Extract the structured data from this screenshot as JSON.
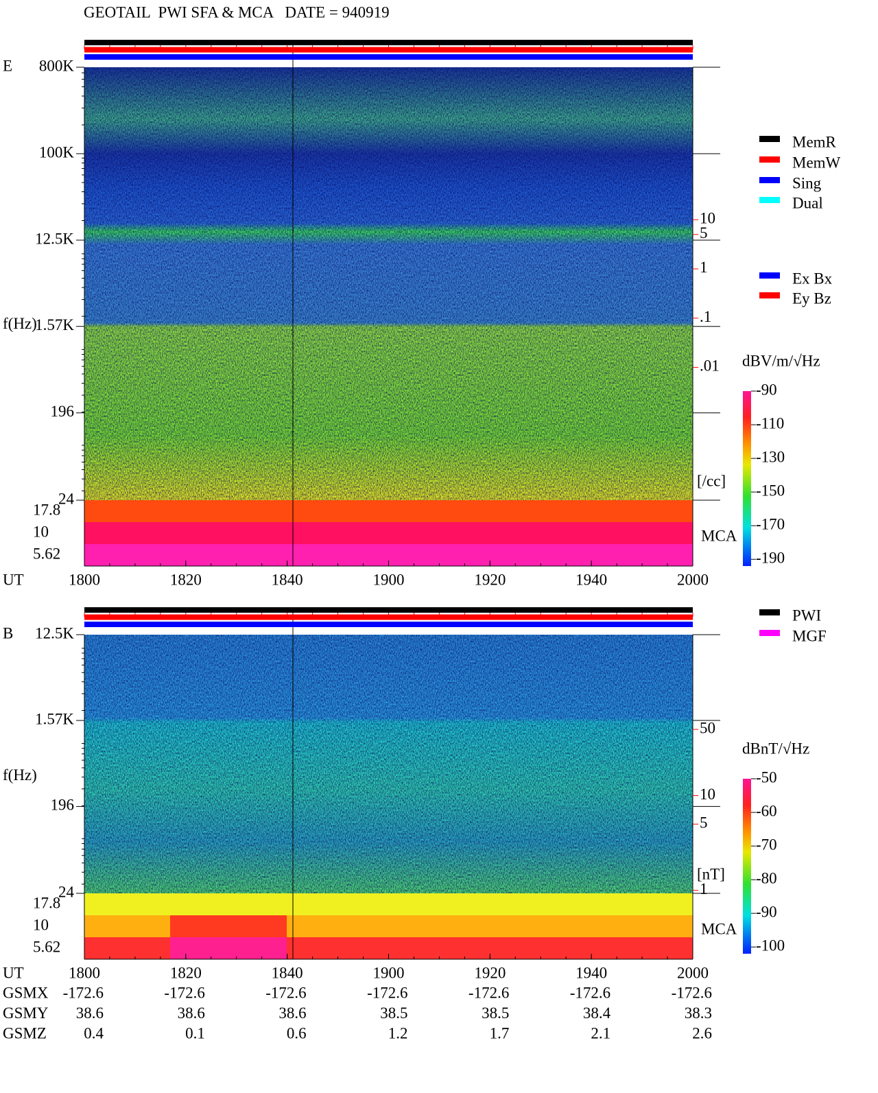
{
  "title": "GEOTAIL  PWI SFA & MCA   DATE = 940919",
  "chart_data": [
    {
      "type": "spectrogram",
      "panel_label": "E",
      "ylabel": "f(Hz)",
      "xlabel": "UT",
      "log_y": true,
      "ylim": [
        24,
        800000
      ],
      "yticks": [
        {
          "value": 800000,
          "label": "800K"
        },
        {
          "value": 100000,
          "label": "100K"
        },
        {
          "value": 12500,
          "label": "12.5K"
        },
        {
          "value": 1570,
          "label": "1.57K"
        },
        196,
        24
      ],
      "mca_channels": [
        17.8,
        10,
        5.62
      ],
      "mca_label": "MCA",
      "xlim": [
        0,
        120
      ],
      "xticks": [
        {
          "value": 0,
          "label": "1800"
        },
        {
          "value": 20,
          "label": "1820"
        },
        {
          "value": 40,
          "label": "1840"
        },
        {
          "value": 60,
          "label": "1900"
        },
        {
          "value": 80,
          "label": "1920"
        },
        {
          "value": 100,
          "label": "1940"
        },
        {
          "value": 120,
          "label": "2000"
        }
      ],
      "log_y2": true,
      "y2lim": [
        2e-05,
        12500
      ],
      "y2ticks": [
        10,
        5,
        1,
        {
          "value": 0.1,
          "label": ".1"
        },
        {
          "value": 0.01,
          "label": ".01"
        }
      ],
      "y2label": "[/cc]",
      "y2color": "#ff0000",
      "colorbar": {
        "label": "dBV/m/√Hz",
        "clim": [
          -90,
          -194
        ],
        "ticks": [
          -90,
          -110,
          -130,
          -150,
          -170,
          -190
        ]
      },
      "mode_bars": [
        {
          "color": "#000000"
        },
        {
          "color": "#ff0000"
        },
        {
          "color": "#0000ff"
        }
      ],
      "legend_groups": [
        [
          {
            "name": "MemR",
            "color": "#000000"
          },
          {
            "name": "MemW",
            "color": "#ff0000"
          },
          {
            "name": "Sing",
            "color": "#0000ff"
          },
          {
            "name": "Dual",
            "color": "#00ffff"
          }
        ],
        [
          {
            "name": "Ex Bx",
            "color": "#0000ff"
          },
          {
            "name": "Ey Bz",
            "color": "#ff0000"
          }
        ]
      ]
    },
    {
      "type": "spectrogram",
      "panel_label": "B",
      "ylabel": "f(Hz)",
      "xlabel": "UT",
      "log_y": true,
      "ylim": [
        24,
        12500
      ],
      "yticks": [
        {
          "value": 12500,
          "label": "12.5K"
        },
        {
          "value": 1570,
          "label": "1.57K"
        },
        196,
        24
      ],
      "mca_channels": [
        17.8,
        10,
        5.62
      ],
      "mca_label": "MCA",
      "xlim": [
        0,
        120
      ],
      "xticks": [
        {
          "value": 0,
          "label": "1800"
        },
        {
          "value": 20,
          "label": "1820"
        },
        {
          "value": 40,
          "label": "1840"
        },
        {
          "value": 60,
          "label": "1900"
        },
        {
          "value": 80,
          "label": "1920"
        },
        {
          "value": 100,
          "label": "1940"
        },
        {
          "value": 120,
          "label": "2000"
        }
      ],
      "log_y2": true,
      "y2lim": [
        0.93,
        500
      ],
      "y2ticks": [
        50,
        10,
        5,
        1
      ],
      "y2label": "[nT]",
      "y2color": "#ff0000",
      "colorbar": {
        "label": "dBnT/√Hz",
        "clim": [
          -50,
          -102
        ],
        "ticks": [
          -50,
          -60,
          -70,
          -80,
          -90,
          -100
        ]
      },
      "mode_bars": [
        {
          "color": "#000000"
        },
        {
          "color": "#ff0000"
        },
        {
          "color": "#0000ff"
        }
      ],
      "legend_groups": [
        [
          {
            "name": "PWI",
            "color": "#000000"
          },
          {
            "name": "MGF",
            "color": "#ff00ff"
          }
        ]
      ]
    }
  ],
  "ephemeris": {
    "rows": [
      {
        "name": "GSMX",
        "values": [
          -172.6,
          -172.6,
          -172.6,
          -172.6,
          -172.6,
          -172.6,
          -172.6
        ]
      },
      {
        "name": "GSMY",
        "values": [
          38.6,
          38.6,
          38.6,
          38.5,
          38.5,
          38.4,
          38.3
        ]
      },
      {
        "name": "GSMZ",
        "values": [
          0.4,
          0.1,
          0.6,
          1.2,
          1.7,
          2.1,
          2.6
        ]
      }
    ]
  }
}
